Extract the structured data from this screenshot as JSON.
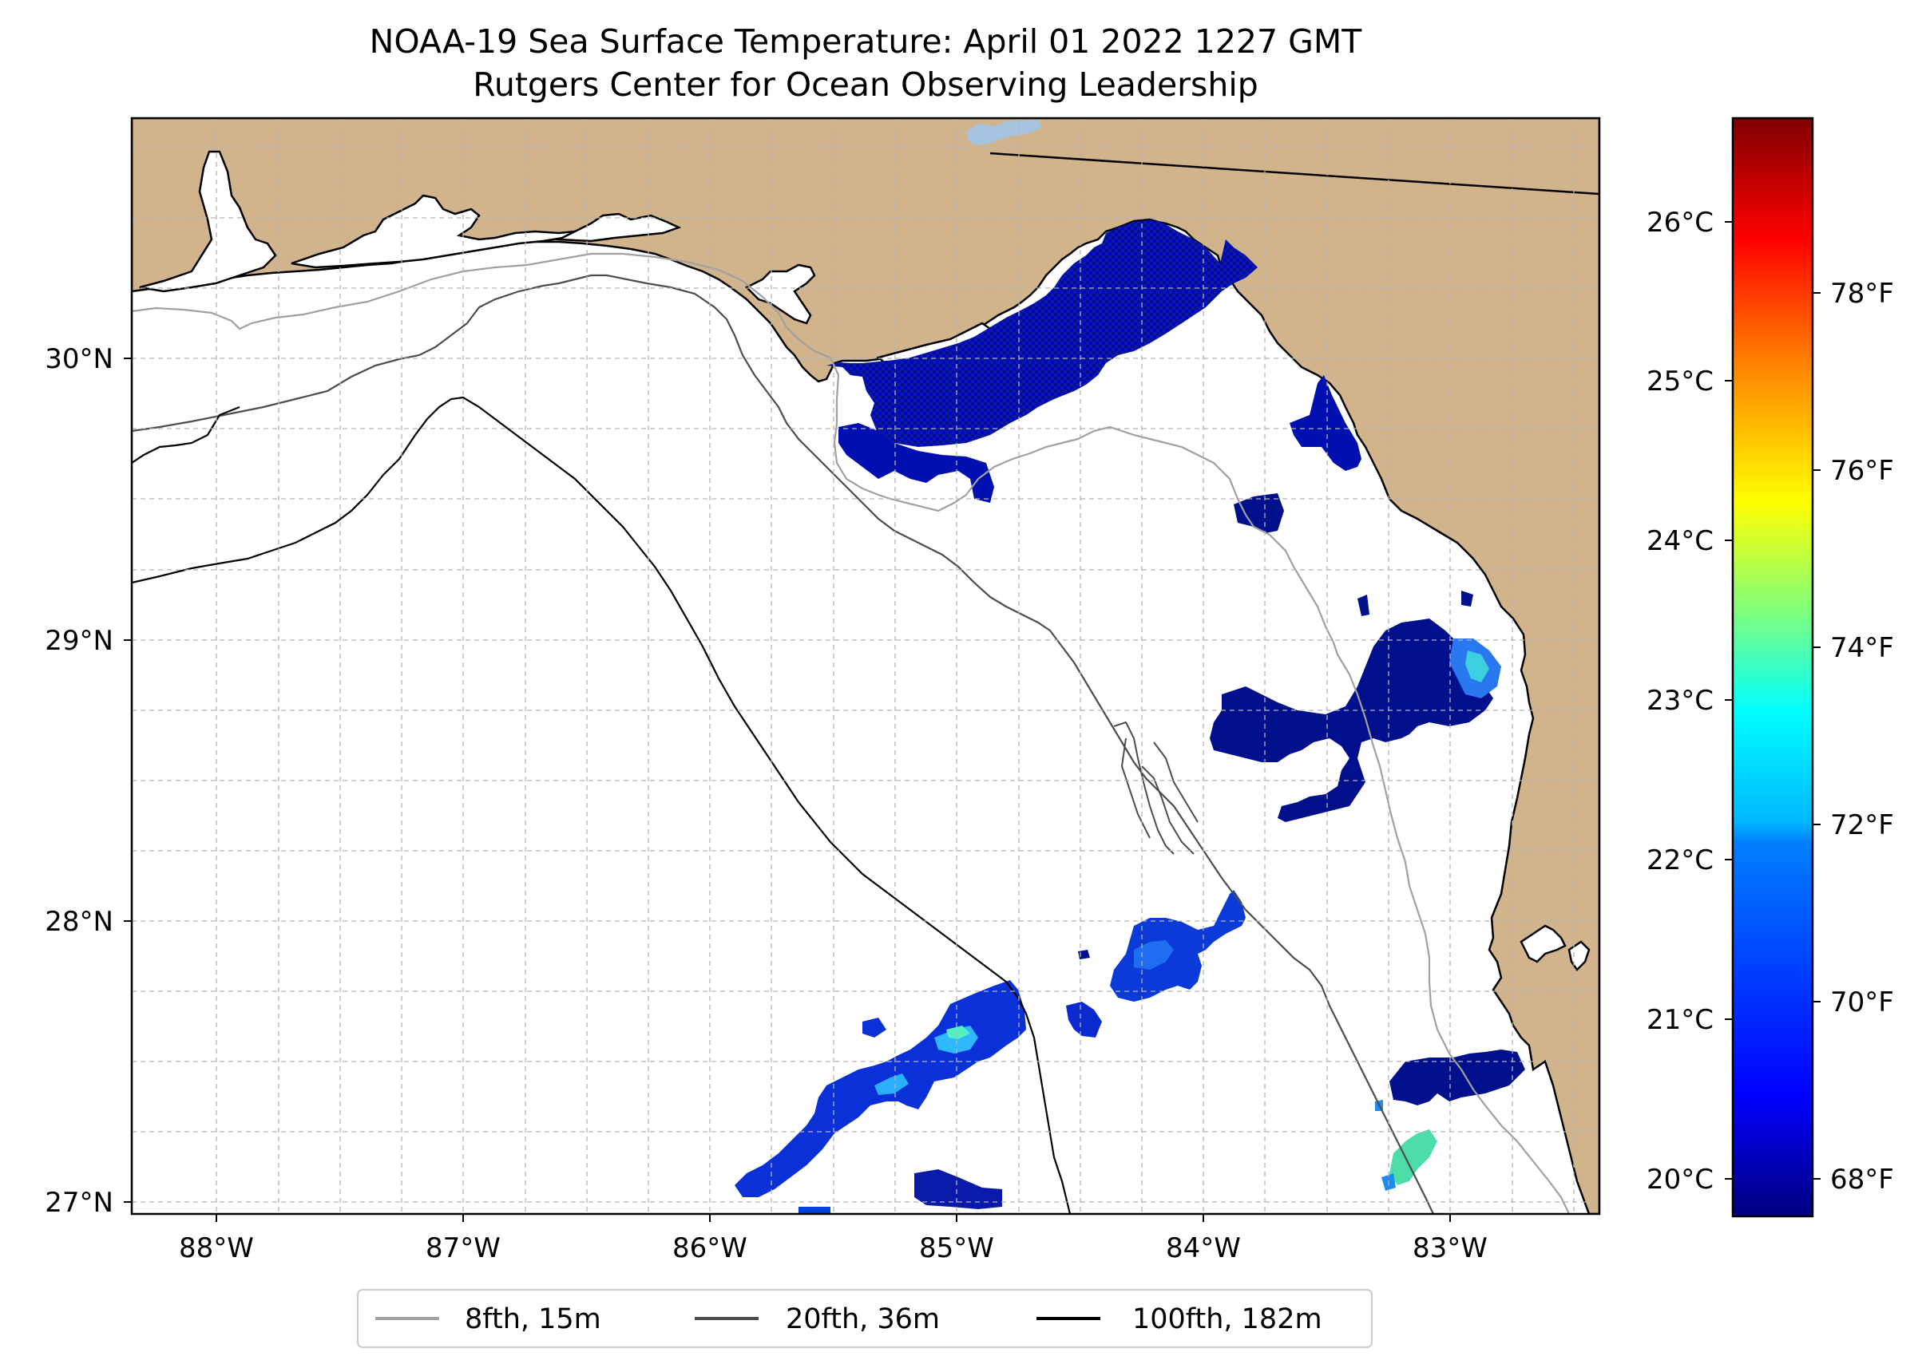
{
  "title": {
    "line1": "NOAA-19 Sea Surface Temperature: April 01 2022 1227 GMT",
    "line2": "Rutgers Center for Ocean Observing Leadership"
  },
  "map": {
    "land_color": "#d2b48c",
    "ocean_color": "#ffffff",
    "lon_range": [
      -88.33,
      -82.37
    ],
    "lat_range": [
      26.93,
      30.87
    ],
    "lat_labels": [
      "30°N",
      "29°N",
      "28°N",
      "27°N"
    ],
    "lon_labels": [
      "88°W",
      "87°W",
      "86°W",
      "85°W",
      "84°W",
      "83°W"
    ]
  },
  "colorbar": {
    "celsius_labels": [
      "26°C",
      "25°C",
      "24°C",
      "23°C",
      "22°C",
      "21°C",
      "20°C"
    ],
    "fahrenheit_labels": [
      "78°F",
      "76°F",
      "74°F",
      "72°F",
      "70°F",
      "68°F"
    ],
    "colormap": [
      "#00007f",
      "#0000ff",
      "#007fff",
      "#00ffff",
      "#7fff7f",
      "#ffff00",
      "#ff7f00",
      "#ff0000",
      "#7f0000"
    ]
  },
  "legend": {
    "items": [
      {
        "label": "8fth, 15m",
        "color": "#a0a0a0"
      },
      {
        "label": "20fth, 36m",
        "color": "#4d4d4d"
      },
      {
        "label": "100fth, 182m",
        "color": "#000000"
      }
    ]
  }
}
